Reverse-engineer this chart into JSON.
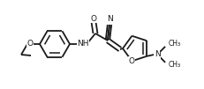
{
  "bg_color": "#ffffff",
  "line_color": "#1a1a1a",
  "lw": 1.3,
  "fs": 6.5,
  "figsize": [
    2.32,
    1.01
  ],
  "dpi": 100,
  "xlim": [
    0,
    232
  ],
  "ylim": [
    0,
    101
  ]
}
